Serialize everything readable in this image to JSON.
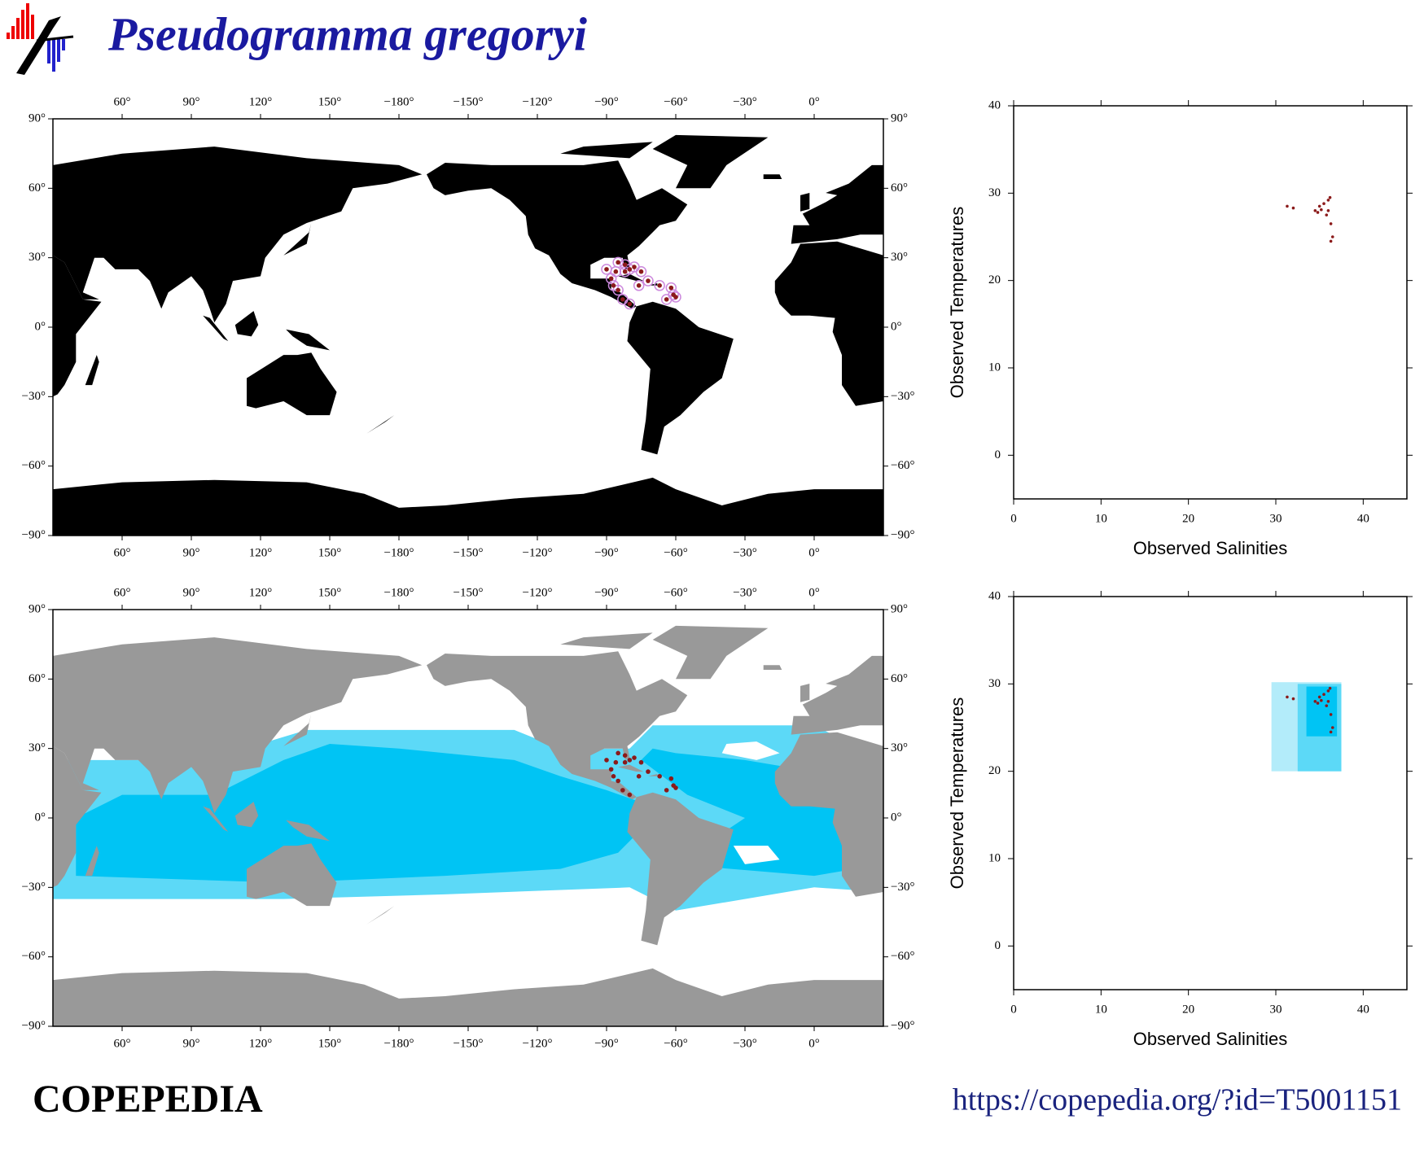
{
  "title": "Pseudogramma gregoryi",
  "footer_left": "COPEPEDIA",
  "footer_right": "https://copepedia.org/?id=T5001151",
  "chart_data": [
    {
      "type": "map",
      "land_color": "#000000",
      "habitat": false,
      "xlim": [
        30,
        390
      ],
      "ylim": [
        -90,
        90
      ],
      "xticks": [
        {
          "value": 60,
          "label": "60°"
        },
        {
          "value": 90,
          "label": "90°"
        },
        {
          "value": 120,
          "label": "120°"
        },
        {
          "value": 150,
          "label": "150°"
        },
        {
          "value": -180,
          "label": "−180°"
        },
        {
          "value": -150,
          "label": "−150°"
        },
        {
          "value": -120,
          "label": "−120°"
        },
        {
          "value": -90,
          "label": "−90°"
        },
        {
          "value": -60,
          "label": "−60°"
        },
        {
          "value": -30,
          "label": "−30°"
        },
        {
          "value": 0,
          "label": "0°"
        }
      ],
      "yticks": [
        {
          "value": 90,
          "label": "90°"
        },
        {
          "value": 60,
          "label": "60°"
        },
        {
          "value": 30,
          "label": "30°"
        },
        {
          "value": 0,
          "label": "0°"
        },
        {
          "value": -30,
          "label": "−30°"
        },
        {
          "value": -60,
          "label": "−60°"
        },
        {
          "value": -90,
          "label": "−90°"
        }
      ],
      "series": [
        {
          "color": "#cc88dd",
          "marker": "open",
          "x": [
            -90,
            -85,
            -82,
            -80,
            -78,
            -88,
            -87,
            -85,
            -83,
            -80,
            -76,
            -72,
            -67,
            -62,
            -61,
            -60,
            -64,
            -86,
            -82,
            -75
          ],
          "y": [
            25,
            28,
            27,
            25,
            26,
            21,
            18,
            16,
            12,
            10,
            18,
            20,
            18,
            17,
            14,
            13,
            12,
            24,
            24,
            24
          ]
        },
        {
          "color": "#8b1a1a",
          "marker": "filled",
          "x": [
            -90,
            -85,
            -82,
            -80,
            -78,
            -88,
            -87,
            -85,
            -83,
            -80,
            -76,
            -72,
            -67,
            -62,
            -61,
            -60,
            -64,
            -86,
            -82,
            -75
          ],
          "y": [
            25,
            28,
            27,
            25,
            26,
            21,
            18,
            16,
            12,
            10,
            18,
            20,
            18,
            17,
            14,
            13,
            12,
            24,
            24,
            24
          ]
        }
      ]
    },
    {
      "type": "scatter",
      "x_label": "Observed Salinities",
      "y_label": "Observed Temperatures",
      "xlim": [
        0,
        45
      ],
      "ylim": [
        -5,
        40
      ],
      "xticks": [
        0,
        10,
        20,
        30,
        40
      ],
      "yticks": [
        0,
        10,
        20,
        30,
        40
      ],
      "series": [
        {
          "color": "#8b1a1a",
          "x": [
            31.3,
            32,
            34.5,
            35,
            35.5,
            36,
            36.2,
            35.8,
            36.3,
            36.5,
            36.3,
            34.8,
            36,
            35.2
          ],
          "y": [
            28.5,
            28.3,
            28,
            28.5,
            28.8,
            29.2,
            29.5,
            27.5,
            26.5,
            25,
            24.5,
            27.8,
            28,
            28.1
          ]
        }
      ]
    },
    {
      "type": "map",
      "land_color": "#999999",
      "habitat": true,
      "xlim": [
        30,
        390
      ],
      "ylim": [
        -90,
        90
      ],
      "xticks": [
        {
          "value": 60,
          "label": "60°"
        },
        {
          "value": 90,
          "label": "90°"
        },
        {
          "value": 120,
          "label": "120°"
        },
        {
          "value": 150,
          "label": "150°"
        },
        {
          "value": -180,
          "label": "−180°"
        },
        {
          "value": -150,
          "label": "−150°"
        },
        {
          "value": -120,
          "label": "−120°"
        },
        {
          "value": -90,
          "label": "−90°"
        },
        {
          "value": -60,
          "label": "−60°"
        },
        {
          "value": -30,
          "label": "−30°"
        },
        {
          "value": 0,
          "label": "0°"
        }
      ],
      "yticks": [
        {
          "value": 90,
          "label": "90°"
        },
        {
          "value": 60,
          "label": "60°"
        },
        {
          "value": 30,
          "label": "30°"
        },
        {
          "value": 0,
          "label": "0°"
        },
        {
          "value": -30,
          "label": "−30°"
        },
        {
          "value": -60,
          "label": "−60°"
        },
        {
          "value": -90,
          "label": "−90°"
        }
      ],
      "series": [
        {
          "color": "#8b1a1a",
          "marker": "filled",
          "x": [
            -90,
            -85,
            -82,
            -80,
            -78,
            -88,
            -87,
            -85,
            -83,
            -80,
            -76,
            -72,
            -67,
            -62,
            -61,
            -60,
            -64,
            -86,
            -82,
            -75
          ],
          "y": [
            25,
            28,
            27,
            25,
            26,
            21,
            18,
            16,
            12,
            10,
            18,
            20,
            18,
            17,
            14,
            13,
            12,
            24,
            24,
            24
          ]
        }
      ]
    },
    {
      "type": "scatter",
      "x_label": "Observed Salinities",
      "y_label": "Observed Temperatures",
      "xlim": [
        0,
        45
      ],
      "ylim": [
        -5,
        40
      ],
      "xticks": [
        0,
        10,
        20,
        30,
        40
      ],
      "yticks": [
        0,
        10,
        20,
        30,
        40
      ],
      "regions": [
        {
          "color": "#b3ecfa",
          "x": [
            29.5,
            37.5
          ],
          "y": [
            20,
            30.2
          ]
        },
        {
          "color": "#5cd9f7",
          "x": [
            32.5,
            37.5
          ],
          "y": [
            20,
            30
          ]
        },
        {
          "color": "#00c4f4",
          "x": [
            33.5,
            37
          ],
          "y": [
            24,
            29.7
          ]
        }
      ],
      "series": [
        {
          "color": "#8b1a1a",
          "x": [
            31.3,
            32,
            34.5,
            35,
            35.5,
            36,
            36.2,
            35.8,
            36.3,
            36.5,
            36.3,
            34.8,
            36,
            35.2
          ],
          "y": [
            28.5,
            28.3,
            28,
            28.5,
            28.8,
            29.2,
            29.5,
            27.5,
            26.5,
            25,
            24.5,
            27.8,
            28,
            28.1
          ]
        }
      ]
    }
  ]
}
